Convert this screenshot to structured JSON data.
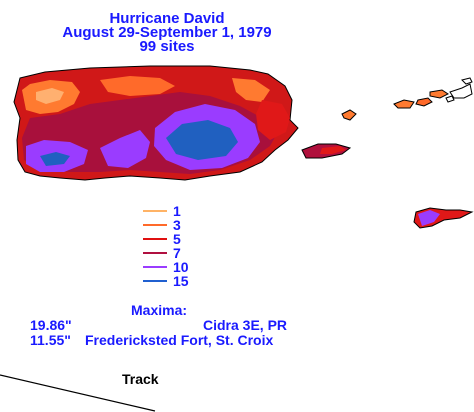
{
  "header": {
    "title": "Hurricane David",
    "dates": "August 29-September 1, 1979",
    "sites": "99 sites"
  },
  "legend": {
    "items": [
      {
        "label": "1",
        "color": "#ffb366"
      },
      {
        "label": "3",
        "color": "#ff6a2a"
      },
      {
        "label": "5",
        "color": "#e01010"
      },
      {
        "label": "7",
        "color": "#b01040"
      },
      {
        "label": "10",
        "color": "#9a3cff"
      },
      {
        "label": "15",
        "color": "#2060d0"
      }
    ]
  },
  "maxima": {
    "heading": "Maxima:",
    "rows": [
      {
        "value": "19.86\"",
        "location": "Cidra 3E, PR"
      },
      {
        "value": "11.55\"",
        "location": "Fredericksted Fort, St. Croix"
      }
    ]
  },
  "track": {
    "label": "Track"
  },
  "colors": {
    "text": "#1a1aff",
    "outline": "#000000"
  }
}
